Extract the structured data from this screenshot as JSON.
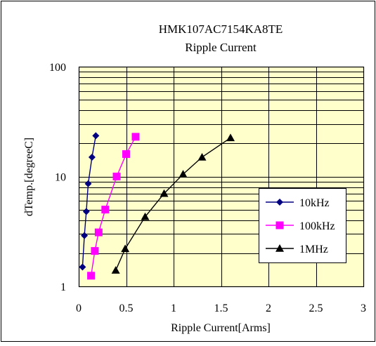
{
  "chart_data": {
    "type": "line",
    "title": "HMK107AC7154KA8TE",
    "subtitle": "Ripple Current",
    "xlabel": "Ripple Current[Arms]",
    "ylabel": "dTemp.[degreeC]",
    "xlim": [
      0,
      3
    ],
    "ylim": [
      1,
      100
    ],
    "y_scale": "log",
    "x_ticks": [
      0,
      0.5,
      1,
      1.5,
      2,
      2.5,
      3
    ],
    "x_tick_labels": [
      "0",
      "0.5",
      "1",
      "1.5",
      "2",
      "2.5",
      "3"
    ],
    "y_ticks": [
      1,
      10,
      100
    ],
    "y_tick_labels": [
      "1",
      "10",
      "100"
    ],
    "grid": true,
    "plot_background": "#ffffcc",
    "legend_position": "lower-right",
    "series": [
      {
        "name": "10kHz",
        "color": "#000080",
        "marker": "diamond",
        "x": [
          0.04,
          0.06,
          0.08,
          0.1,
          0.14,
          0.18
        ],
        "y": [
          1.5,
          2.9,
          4.8,
          8.6,
          15,
          23.5
        ]
      },
      {
        "name": "100kHz",
        "color": "#ff00ff",
        "marker": "square",
        "x": [
          0.13,
          0.17,
          0.21,
          0.28,
          0.4,
          0.5,
          0.6
        ],
        "y": [
          1.25,
          2.1,
          3.1,
          5,
          10,
          16,
          23
        ]
      },
      {
        "name": "1MHz",
        "color": "#000000",
        "marker": "triangle",
        "x": [
          0.39,
          0.49,
          0.7,
          0.9,
          1.1,
          1.3,
          1.6
        ],
        "y": [
          1.4,
          2.2,
          4.3,
          7,
          10.5,
          15,
          22.5
        ]
      }
    ]
  }
}
